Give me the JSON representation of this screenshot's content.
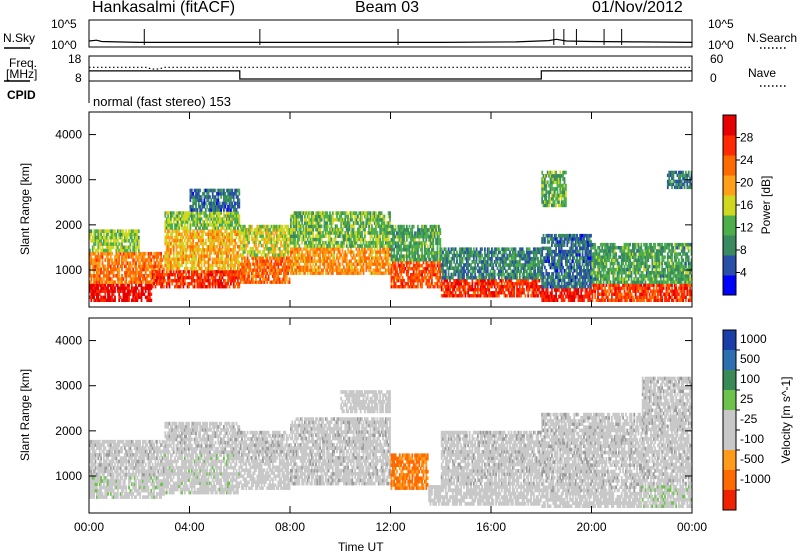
{
  "header": {
    "station": "Hankasalmi (fitACF)",
    "beam": "Beam 03",
    "date": "01/Nov/2012"
  },
  "strip_labels": {
    "nsky": "N.Sky",
    "nsearch": "N.Search",
    "freq_line1": "Freq.",
    "freq_line2": "[MHz]",
    "nave": "Nave",
    "cpid": "CPID",
    "nsky_ticks": [
      "10^5",
      "10^0"
    ],
    "nsearch_ticks": [
      "10^5",
      "10^0"
    ],
    "freq_ticks": [
      "18",
      "8"
    ],
    "nave_ticks": [
      "60",
      "0"
    ],
    "cpid_value": "normal (fast stereo) 153"
  },
  "colors": {
    "power_scale": [
      "#0000ff",
      "#2a4fa8",
      "#3a8a60",
      "#4caf4c",
      "#cfd81f",
      "#ff9f1a",
      "#ff6a00",
      "#ff2a00",
      "#e60000"
    ],
    "velocity_scale": [
      "#1a3fa8",
      "#2c6fb0",
      "#3a8a58",
      "#6cc24a",
      "#c8c8c8",
      "#c8c8c8",
      "#ff9a1a",
      "#ff6a00",
      "#ee2200"
    ],
    "ground_scatter": "#9a9a9a"
  },
  "chart_data": [
    {
      "type": "line",
      "panel": "noise and frequency strips",
      "x_range_hours": [
        0,
        24
      ],
      "series": [
        {
          "name": "N.Sky",
          "log10_values": [
            [
              0,
              0.9
            ],
            [
              0.3,
              1.1
            ],
            [
              0.5,
              0.8
            ],
            [
              2,
              0.6
            ],
            [
              6,
              0.6
            ],
            [
              10,
              0.6
            ],
            [
              14,
              0.6
            ],
            [
              17,
              0.7
            ],
            [
              18.3,
              1.0
            ],
            [
              18.6,
              1.3
            ],
            [
              19,
              0.9
            ],
            [
              20,
              0.8
            ],
            [
              22,
              0.7
            ],
            [
              24,
              0.6
            ]
          ]
        },
        {
          "name": "Freq.",
          "values_mhz": [
            [
              0,
              13.3
            ],
            [
              2.3,
              13.3
            ],
            [
              2.5,
              12.5
            ],
            [
              2.8,
              12.6
            ],
            [
              3,
              13.3
            ],
            [
              24,
              13.3
            ]
          ]
        },
        {
          "name": "Nave",
          "values": [
            [
              0,
              22
            ],
            [
              6,
              22
            ],
            [
              6,
              0
            ],
            [
              18,
              0
            ],
            [
              18,
              22
            ],
            [
              24,
              22
            ]
          ]
        }
      ]
    },
    {
      "type": "heatmap",
      "panel": "power",
      "title": "",
      "xlabel": "",
      "ylabel": "Slant Range [km]",
      "y_ticks": [
        "1000",
        "2000",
        "3000",
        "4000"
      ],
      "ylim": [
        180,
        4500
      ],
      "colorbar_label": "Power [dB]",
      "colorbar_ticks": [
        "4",
        "8",
        "12",
        "16",
        "20",
        "24",
        "28"
      ],
      "clim": [
        0,
        32
      ],
      "bands": [
        {
          "t0": 0.0,
          "t1": 2.5,
          "r0": 300,
          "r1": 700,
          "value": 30
        },
        {
          "t0": 0.0,
          "t1": 3.0,
          "r0": 700,
          "r1": 1400,
          "value": 22
        },
        {
          "t0": 0.0,
          "t1": 2.0,
          "r0": 1400,
          "r1": 1900,
          "value": 14
        },
        {
          "t0": 2.5,
          "t1": 6.0,
          "r0": 600,
          "r1": 1000,
          "value": 27
        },
        {
          "t0": 3.0,
          "t1": 6.0,
          "r0": 1000,
          "r1": 1900,
          "value": 19
        },
        {
          "t0": 3.0,
          "t1": 6.0,
          "r0": 1900,
          "r1": 2300,
          "value": 14
        },
        {
          "t0": 4.0,
          "t1": 6.0,
          "r0": 2300,
          "r1": 2800,
          "value": 7
        },
        {
          "t0": 6.0,
          "t1": 8.0,
          "r0": 700,
          "r1": 1300,
          "value": 23
        },
        {
          "t0": 6.0,
          "t1": 8.0,
          "r0": 1300,
          "r1": 2000,
          "value": 16
        },
        {
          "t0": 8.0,
          "t1": 12.0,
          "r0": 900,
          "r1": 1500,
          "value": 21
        },
        {
          "t0": 8.0,
          "t1": 12.0,
          "r0": 1500,
          "r1": 2300,
          "value": 13
        },
        {
          "t0": 12.0,
          "t1": 14.0,
          "r0": 600,
          "r1": 1200,
          "value": 25
        },
        {
          "t0": 12.0,
          "t1": 14.0,
          "r0": 1200,
          "r1": 2000,
          "value": 11
        },
        {
          "t0": 14.0,
          "t1": 18.0,
          "r0": 400,
          "r1": 800,
          "value": 27
        },
        {
          "t0": 14.0,
          "t1": 18.0,
          "r0": 800,
          "r1": 1500,
          "value": 9
        },
        {
          "t0": 18.0,
          "t1": 20.0,
          "r0": 300,
          "r1": 600,
          "value": 29
        },
        {
          "t0": 18.0,
          "t1": 20.0,
          "r0": 600,
          "r1": 1800,
          "value": 7
        },
        {
          "t0": 18.0,
          "t1": 19.0,
          "r0": 2400,
          "r1": 3200,
          "value": 12
        },
        {
          "t0": 20.0,
          "t1": 24.0,
          "r0": 300,
          "r1": 700,
          "value": 26
        },
        {
          "t0": 20.0,
          "t1": 24.0,
          "r0": 700,
          "r1": 1600,
          "value": 11
        },
        {
          "t0": 23.0,
          "t1": 24.0,
          "r0": 2800,
          "r1": 3200,
          "value": 8
        }
      ]
    },
    {
      "type": "heatmap",
      "panel": "velocity",
      "title": "",
      "xlabel": "Time UT",
      "ylabel": "Slant Range [km]",
      "x_ticks": [
        "00:00",
        "04:00",
        "08:00",
        "12:00",
        "16:00",
        "20:00",
        "00:00"
      ],
      "y_ticks": [
        "1000",
        "2000",
        "3000",
        "4000"
      ],
      "ylim": [
        180,
        4500
      ],
      "colorbar_label": "Velocity [m s^-1]",
      "colorbar_ticks": [
        "1000",
        "500",
        "100",
        "25",
        "-25",
        "-100",
        "-500",
        "-1000"
      ],
      "clim": [
        -1200,
        1200
      ],
      "bands": [
        {
          "t0": 0.0,
          "t1": 3.0,
          "r0": 500,
          "r1": 1000,
          "value": 60
        },
        {
          "t0": 0.0,
          "t1": 3.0,
          "r0": 1000,
          "r1": 1800,
          "value": 0,
          "gs": true
        },
        {
          "t0": 3.0,
          "t1": 6.0,
          "r0": 600,
          "r1": 1500,
          "value": 50
        },
        {
          "t0": 3.0,
          "t1": 6.0,
          "r0": 1500,
          "r1": 2200,
          "value": 0,
          "gs": true
        },
        {
          "t0": 6.0,
          "t1": 8.0,
          "r0": 700,
          "r1": 1300,
          "value": -150
        },
        {
          "t0": 6.0,
          "t1": 8.0,
          "r0": 1300,
          "r1": 2000,
          "value": 0,
          "gs": true
        },
        {
          "t0": 8.0,
          "t1": 12.0,
          "r0": 800,
          "r1": 2300,
          "value": 0,
          "gs": true
        },
        {
          "t0": 10.0,
          "t1": 12.0,
          "r0": 2400,
          "r1": 2900,
          "value": -300
        },
        {
          "t0": 12.0,
          "t1": 13.5,
          "r0": 700,
          "r1": 1500,
          "value": -700
        },
        {
          "t0": 13.5,
          "t1": 18.0,
          "r0": 350,
          "r1": 800,
          "value": -250
        },
        {
          "t0": 14.0,
          "t1": 18.0,
          "r0": 800,
          "r1": 2000,
          "value": 0,
          "gs": true
        },
        {
          "t0": 18.0,
          "t1": 22.0,
          "r0": 300,
          "r1": 650,
          "value": -200
        },
        {
          "t0": 18.0,
          "t1": 22.0,
          "r0": 650,
          "r1": 2400,
          "value": 0,
          "gs": true
        },
        {
          "t0": 22.0,
          "t1": 24.0,
          "r0": 300,
          "r1": 800,
          "value": 80
        },
        {
          "t0": 22.0,
          "t1": 24.0,
          "r0": 800,
          "r1": 3200,
          "value": 0,
          "gs": true
        }
      ]
    }
  ]
}
